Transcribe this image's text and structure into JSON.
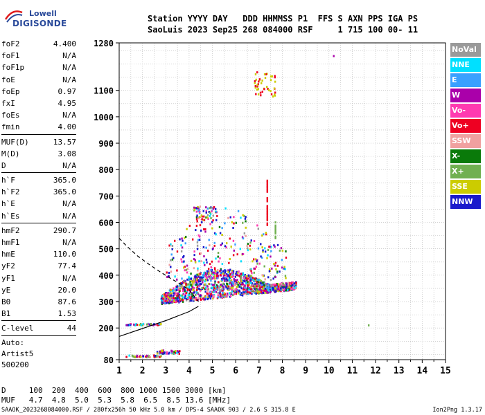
{
  "logo": {
    "line1": "Lowell",
    "line2": "DIGISONDE"
  },
  "header": {
    "row1": "Station YYYY DAY   DDD HHMMSS P1  FFS S AXN PPS IGA PS",
    "row2": "SaoLuis 2023 Sep25 268 084000 RSF     1 715 100 00- 11"
  },
  "params": [
    {
      "group": [
        {
          "label": "foF2",
          "value": "4.400"
        },
        {
          "label": "foF1",
          "value": "N/A"
        },
        {
          "label": "foF1p",
          "value": "N/A"
        },
        {
          "label": "foE",
          "value": "N/A"
        },
        {
          "label": "foEp",
          "value": "0.97"
        },
        {
          "label": "fxI",
          "value": "4.95"
        },
        {
          "label": "foEs",
          "value": "N/A"
        },
        {
          "label": "fmin",
          "value": "4.00"
        }
      ]
    },
    {
      "group": [
        {
          "label": "MUF(D)",
          "value": "13.57"
        },
        {
          "label": "M(D)",
          "value": "3.08"
        },
        {
          "label": "D",
          "value": "N/A"
        }
      ]
    },
    {
      "group": [
        {
          "label": "h`F",
          "value": "365.0"
        },
        {
          "label": "h`F2",
          "value": "365.0"
        },
        {
          "label": "h`E",
          "value": "N/A"
        },
        {
          "label": "h`Es",
          "value": "N/A"
        }
      ]
    },
    {
      "group": [
        {
          "label": "hmF2",
          "value": "290.7"
        },
        {
          "label": "hmF1",
          "value": "N/A"
        },
        {
          "label": "hmE",
          "value": "110.0"
        },
        {
          "label": "yF2",
          "value": "77.4"
        },
        {
          "label": "yF1",
          "value": "N/A"
        },
        {
          "label": "yE",
          "value": "20.0"
        },
        {
          "label": "B0",
          "value": "87.6"
        },
        {
          "label": "B1",
          "value": "1.53"
        }
      ]
    },
    {
      "group": [
        {
          "label": "C-level",
          "value": "44"
        }
      ]
    }
  ],
  "autoscaling": {
    "line1": "Auto:",
    "line2": "Artist5",
    "line3": "500200"
  },
  "legend": [
    {
      "label": "NoVal",
      "color": "#9a9a9a"
    },
    {
      "label": "NNE",
      "color": "#00e0ff"
    },
    {
      "label": "E",
      "color": "#3aa0ff"
    },
    {
      "label": "W",
      "color": "#aa00aa"
    },
    {
      "label": "Vo-",
      "color": "#ff3ab0"
    },
    {
      "label": "Vo+",
      "color": "#ee0022"
    },
    {
      "label": "SSW",
      "color": "#f0a0a0"
    },
    {
      "label": "X-",
      "color": "#0a7a0a"
    },
    {
      "label": "X+",
      "color": "#70b050"
    },
    {
      "label": "SSE",
      "color": "#cccc00"
    },
    {
      "label": "NNW",
      "color": "#1a1acc"
    }
  ],
  "dtable": {
    "row1": "D     100  200  400  600  800 1000 1500 3000 [km]",
    "row2": "MUF   4.7  4.8  5.0  5.3  5.8  6.5  8.5 13.6 [MHz]"
  },
  "footer": {
    "left": "SAAOK_2023268084000.RSF / 280fx256h 50 kHz 5.0 km / DPS-4 SAAOK 903 / 2.6 S 315.8 E",
    "right": "Ion2Png 1.3.17"
  },
  "chart_data": {
    "type": "scatter",
    "xlim": [
      1,
      15
    ],
    "ylim": [
      80,
      1280
    ],
    "xticks": [
      1,
      2,
      3,
      4,
      5,
      6,
      7,
      8,
      9,
      10,
      11,
      12,
      13,
      14,
      15
    ],
    "yticks": [
      80,
      200,
      300,
      400,
      500,
      600,
      700,
      800,
      900,
      1000,
      1100,
      1280
    ],
    "grid": true,
    "profile_solid": [
      [
        1.0,
        168
      ],
      [
        1.5,
        183
      ],
      [
        2,
        198
      ],
      [
        2.5,
        213
      ],
      [
        3,
        228
      ],
      [
        3.5,
        245
      ],
      [
        4,
        262
      ],
      [
        4.4,
        282
      ]
    ],
    "profile_dashed": [
      [
        1.0,
        540
      ],
      [
        1.3,
        512
      ],
      [
        1.8,
        472
      ],
      [
        2.3,
        440
      ],
      [
        2.8,
        410
      ],
      [
        3.2,
        388
      ],
      [
        3.6,
        368
      ],
      [
        4.0,
        345
      ],
      [
        4.4,
        300
      ]
    ],
    "trace_lower": {
      "x_range": [
        2.8,
        8.6
      ],
      "h_start": 290,
      "h_end": 345
    },
    "clusters": [
      {
        "x": [
          1.3,
          2.8
        ],
        "h": [
          88,
          96
        ]
      },
      {
        "x": [
          2.5,
          3.6
        ],
        "h": [
          102,
          115
        ]
      },
      {
        "x": [
          1.3,
          2.8
        ],
        "h": [
          210,
          216
        ]
      },
      {
        "x": [
          2.8,
          8.6
        ],
        "h": [
          290,
          400
        ]
      },
      {
        "x": [
          4.2,
          5.2
        ],
        "h": [
          600,
          660
        ]
      },
      {
        "x": [
          6.8,
          7.7
        ],
        "h": [
          1070,
          1170
        ]
      }
    ],
    "isolated_points": [
      [
        10.2,
        1230
      ],
      [
        11.7,
        210
      ]
    ],
    "vertical_streaks": [
      {
        "x": 7.35,
        "h": [
          590,
          760
        ]
      },
      {
        "x": 7.7,
        "h": [
          540,
          600
        ]
      }
    ]
  }
}
